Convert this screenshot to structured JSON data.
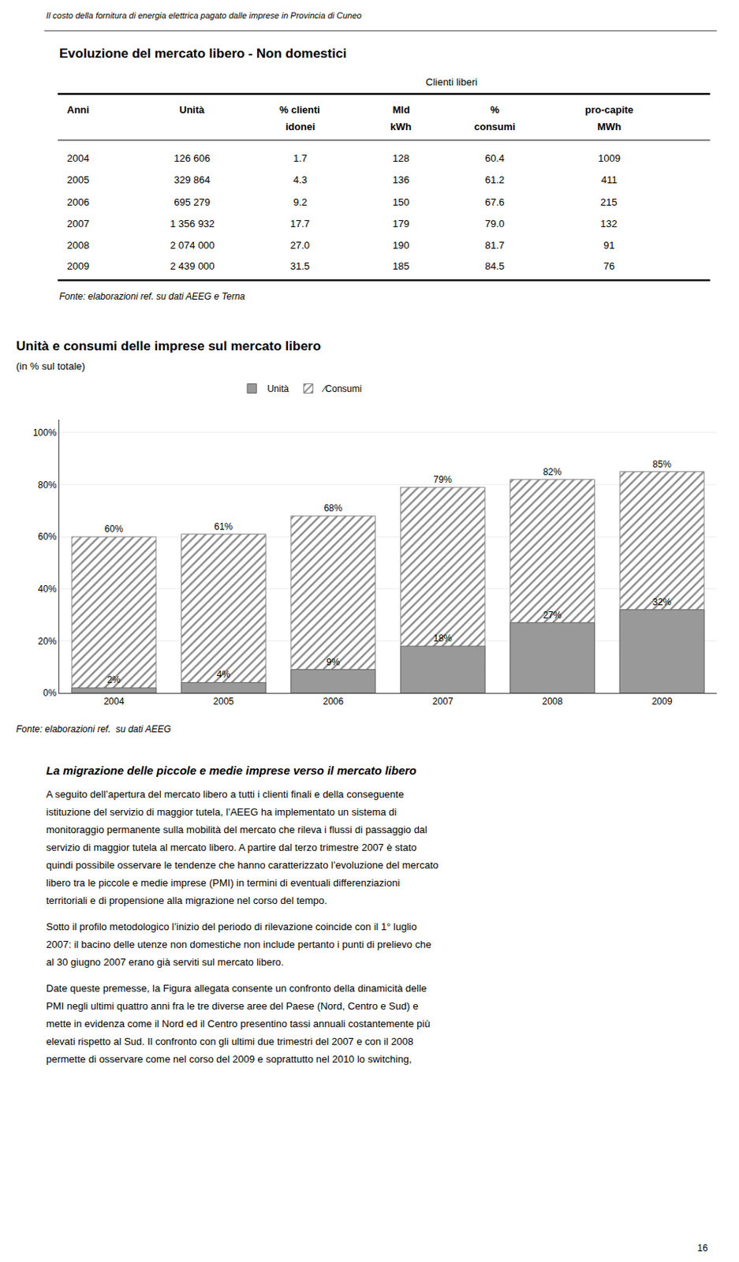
{
  "chart_data": [
    {
      "type": "text",
      "annotations": [
        "Il costo della fornitura di energia elettrica pagato dalle imprese in Provincia di Cuneo"
      ]
    },
    {
      "type": "table",
      "title": "Evoluzione del mercato libero - Non domestici",
      "subtitle": "Clienti liberi",
      "columns": [
        [
          "Anni"
        ],
        [
          "Unità"
        ],
        [
          "% clienti",
          "idonei"
        ],
        [
          "Mld",
          "kWh"
        ],
        [
          "%",
          "consumi"
        ],
        [
          "pro-capite",
          "MWh"
        ]
      ],
      "rows": [
        [
          "2004",
          "126 606",
          "1.7",
          "128",
          "60.4",
          "1009"
        ],
        [
          "2005",
          "329 864",
          "4.3",
          "136",
          "61.2",
          "411"
        ],
        [
          "2006",
          "695 279",
          "9.2",
          "150",
          "67.6",
          "215"
        ],
        [
          "2007",
          "1 356 932",
          "17.7",
          "179",
          "79.0",
          "132"
        ],
        [
          "2008",
          "2 074 000",
          "27.0",
          "190",
          "81.7",
          "91"
        ],
        [
          "2009",
          "2 439 000",
          "31.5",
          "185",
          "84.5",
          "76"
        ]
      ],
      "annotations": [
        "Fonte: elaborazioni ref. su dati AEEG e Terna"
      ]
    },
    {
      "type": "bar",
      "title": "Unità e consumi delle imprese sul mercato libero",
      "subtitle": "(in % sul totale)",
      "categories": [
        "2004",
        "2005",
        "2006",
        "2007",
        "2008",
        "2009"
      ],
      "series": [
        {
          "name": "Unità",
          "color": "#999999",
          "values": [
            2,
            4,
            9,
            18,
            27,
            32
          ],
          "value_labels": [
            "2%",
            "4%",
            "9%",
            "18%",
            "27%",
            "32%"
          ]
        },
        {
          "name": "∕Consumi",
          "color": "#888888",
          "marker": "hatch",
          "values": [
            60,
            61,
            68,
            79,
            82,
            85
          ],
          "value_labels": [
            "60%",
            "61%",
            "68%",
            "79%",
            "82%",
            "85%"
          ]
        }
      ],
      "ylim": [
        0,
        105
      ],
      "yticks": [
        {
          "value": 0,
          "label": "0%"
        },
        {
          "value": 20,
          "label": "20%"
        },
        {
          "value": 40,
          "label": "40%"
        },
        {
          "value": 60,
          "label": "60%"
        },
        {
          "value": 80,
          "label": "80%"
        },
        {
          "value": 100,
          "label": "100%"
        }
      ],
      "grid": true,
      "legend": "top",
      "data_labels": true,
      "annotations": [
        "Fonte: elaborazioni ref.  su dati AEEG"
      ]
    },
    {
      "type": "text",
      "title": "La migrazione delle piccole e medie imprese verso il mercato libero",
      "annotations": [
        [
          "A seguito dell’apertura del mercato libero a tutti i clienti finali e della conseguente",
          "istituzione del servizio di maggior tutela, l’AEEG ha implementato un sistema di",
          "monitoraggio permanente sulla mobilità del mercato che rileva i flussi di passaggio dal",
          "servizio di maggior tutela al mercato libero. A partire dal terzo trimestre 2007 è stato",
          "quindi possibile osservare le tendenze che hanno caratterizzato l’evoluzione del mercato",
          "libero tra le piccole e medie imprese (PMI) in termini di eventuali differenziazioni",
          "territoriali e di propensione alla migrazione nel corso del tempo."
        ],
        [
          "Sotto il profilo metodologico l’inizio del periodo di rilevazione coincide con il 1° luglio",
          "2007: il bacino delle utenze non domestiche non include pertanto i punti di prelievo che",
          "al 30 giugno 2007 erano già serviti sul mercato libero."
        ],
        [
          "Date queste premesse, la Figura allegata consente un confronto della dinamicità delle",
          "PMI negli ultimi quattro anni fra le tre diverse aree del Paese (Nord, Centro e Sud) e",
          "mette in evidenza come il Nord ed il Centro presentino tassi annuali costantemente più",
          "elevati rispetto al Sud. Il confronto con gli ultimi due trimestri del 2007 e con il 2008",
          "permette di osservare come nel corso del 2009 e soprattutto nel 2010 lo switching,"
        ]
      ]
    },
    {
      "type": "text",
      "annotations": [
        "16"
      ]
    }
  ]
}
